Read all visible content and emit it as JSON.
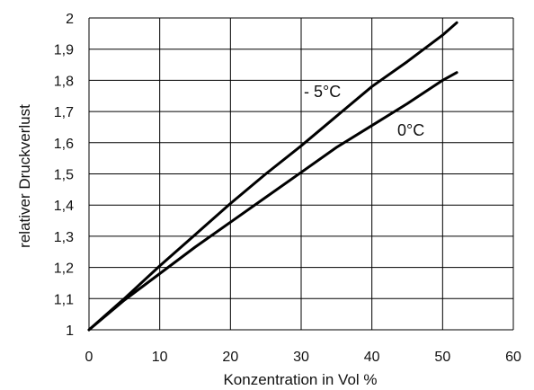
{
  "chart_data": {
    "type": "line",
    "title": "",
    "xlabel": "Konzentration in Vol %",
    "ylabel": "relativer Druckverlust",
    "xlim": [
      0,
      60
    ],
    "ylim": [
      1,
      2
    ],
    "xticks": [
      0,
      10,
      20,
      30,
      40,
      50,
      60
    ],
    "yticks": [
      1,
      1.1,
      1.2,
      1.3,
      1.4,
      1.5,
      1.6,
      1.7,
      1.8,
      1.9,
      2
    ],
    "x_tick_labels": [
      "0",
      "10",
      "20",
      "30",
      "40",
      "50",
      "60"
    ],
    "y_tick_labels": [
      "1",
      "1,1",
      "1,2",
      "1,3",
      "1,4",
      "1,5",
      "1,6",
      "1,7",
      "1,8",
      "1,9",
      "2"
    ],
    "grid": true,
    "legend": "inline labels",
    "series": [
      {
        "name": "- 5°C",
        "x": [
          0,
          5,
          10,
          15,
          20,
          25,
          30,
          35,
          40,
          45,
          50,
          52
        ],
        "y": [
          1.0,
          1.1,
          1.205,
          1.305,
          1.405,
          1.5,
          1.59,
          1.685,
          1.78,
          1.86,
          1.945,
          1.985
        ]
      },
      {
        "name": "0°C",
        "x": [
          0,
          5,
          10,
          15,
          20,
          25,
          30,
          35,
          40,
          45,
          50,
          52
        ],
        "y": [
          1.0,
          1.095,
          1.18,
          1.265,
          1.345,
          1.425,
          1.505,
          1.585,
          1.655,
          1.725,
          1.8,
          1.825
        ]
      }
    ]
  }
}
